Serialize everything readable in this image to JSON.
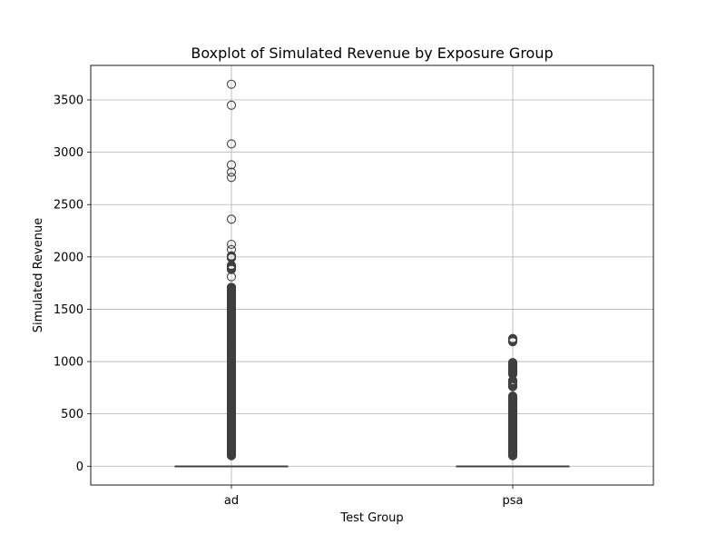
{
  "chart_data": {
    "type": "boxplot",
    "title": "Boxplot of Simulated Revenue by Exposure Group",
    "xlabel": "Test Group",
    "ylabel": "Simulated Revenue",
    "ylim": [
      -180,
      3830
    ],
    "yticks": [
      0,
      500,
      1000,
      1500,
      2000,
      2500,
      3000,
      3500
    ],
    "grid": true,
    "categories": [
      "ad",
      "psa"
    ],
    "boxes": [
      {
        "category": "ad",
        "q1": 0,
        "median": 0,
        "q3": 0,
        "whisker_low": 0,
        "whisker_high": 0,
        "outliers": [
          3650,
          3450,
          3080,
          2880,
          2810,
          2760,
          2360,
          2120,
          2070,
          2010,
          1990,
          1920,
          1880,
          1810,
          1710,
          1695,
          1680,
          1650,
          1620,
          1590,
          1560,
          1530,
          1500,
          1470,
          1440,
          1410,
          1380,
          1350,
          1320,
          1290,
          1260,
          1230,
          1200,
          1170,
          1140,
          1110,
          1080,
          1050,
          1020,
          990,
          960,
          930,
          900,
          870,
          840,
          810,
          780,
          750,
          720,
          690,
          660,
          630,
          600,
          570,
          540,
          510,
          480,
          450,
          420,
          390,
          360,
          330,
          300,
          270,
          240,
          210,
          180,
          150,
          120,
          100
        ]
      },
      {
        "category": "psa",
        "q1": 0,
        "median": 0,
        "q3": 0,
        "whisker_low": 0,
        "whisker_high": 0,
        "outliers": [
          1220,
          1190,
          990,
          960,
          920,
          880,
          820,
          800,
          760,
          670,
          650,
          630,
          600,
          570,
          540,
          510,
          480,
          460,
          440,
          420,
          400,
          380,
          360,
          340,
          320,
          300,
          280,
          260,
          240,
          220,
          200,
          180,
          160,
          140,
          120,
          100
        ]
      }
    ]
  }
}
